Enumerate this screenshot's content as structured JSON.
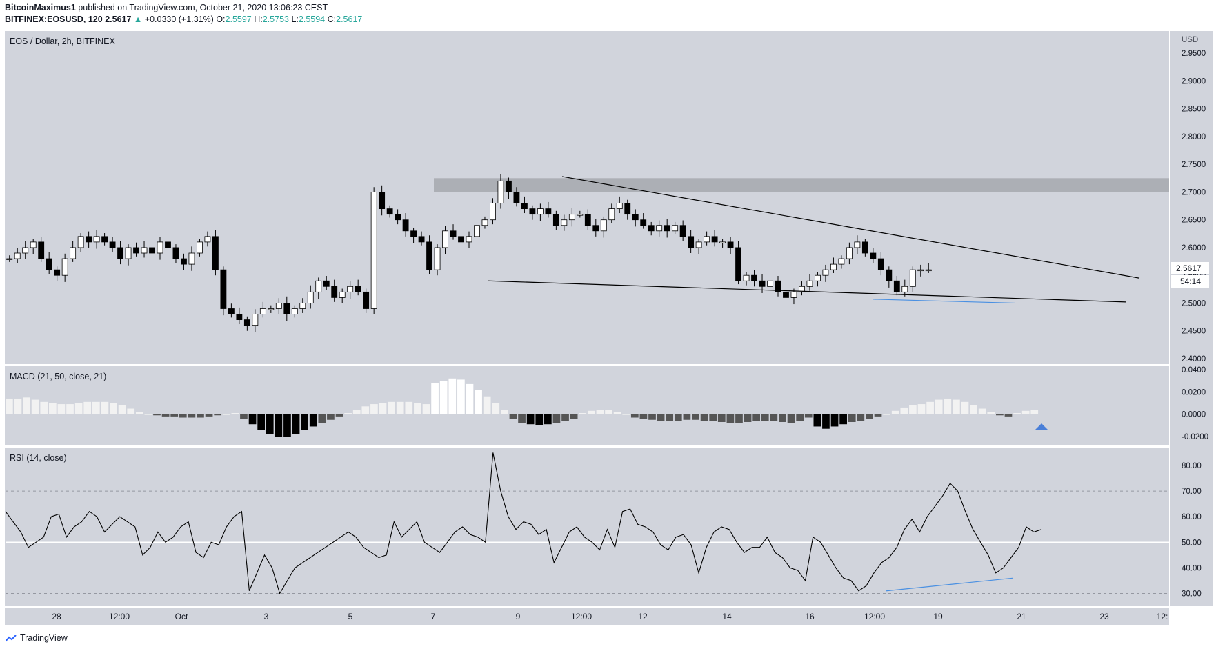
{
  "header": {
    "author": "BitcoinMaximus1",
    "published": "published on TradingView.com, October 21, 2020 13:06:23 CEST",
    "symbol": "BITFINEX:EOSUSD, 120",
    "last": "2.5617",
    "change": "+0.0330 (+1.31%)",
    "o_label": "O:",
    "o": "2.5597",
    "h_label": "H:",
    "h": "2.5753",
    "l_label": "L:",
    "l": "2.5594",
    "c_label": "C:",
    "c": "2.5617"
  },
  "price_panel": {
    "title": "EOS / Dollar, 2h, BITFINEX",
    "currency": "USD",
    "last_price": "2.5617",
    "countdown": "54:14"
  },
  "macd_panel": {
    "title": "MACD (21, 50, close, 21)"
  },
  "rsi_panel": {
    "title": "RSI (14, close)"
  },
  "footer": {
    "brand": "TradingView"
  },
  "colors": {
    "background": "#d1d4dc",
    "frame": "#ffffff",
    "candle": "#000000",
    "up_text": "#26a69a",
    "divergence_line": "#4a90e2",
    "resistance_zone": "#a6a8ae"
  },
  "chart_data": [
    {
      "type": "candlestick",
      "title": "EOS / Dollar, 2h, BITFINEX",
      "ylabel": "USD",
      "y_ticks": [
        "2.4000",
        "2.4500",
        "2.5000",
        "2.5500",
        "2.6000",
        "2.6500",
        "2.7000",
        "2.7500",
        "2.8000",
        "2.8500",
        "2.9000",
        "2.9500"
      ],
      "ylim": [
        2.39,
        2.99
      ],
      "x_ticks": [
        "28",
        "12:00",
        "Oct",
        "3",
        "5",
        "7",
        "9",
        "12:00",
        "12",
        "14",
        "16",
        "12:00",
        "19",
        "21",
        "23",
        "12:"
      ],
      "closes_approx": [
        2.58,
        2.59,
        2.6,
        2.61,
        2.58,
        2.56,
        2.55,
        2.58,
        2.6,
        2.62,
        2.61,
        2.62,
        2.61,
        2.6,
        2.58,
        2.6,
        2.59,
        2.6,
        2.59,
        2.61,
        2.6,
        2.58,
        2.57,
        2.59,
        2.61,
        2.62,
        2.56,
        2.49,
        2.48,
        2.47,
        2.46,
        2.48,
        2.49,
        2.49,
        2.5,
        2.48,
        2.49,
        2.5,
        2.52,
        2.54,
        2.53,
        2.51,
        2.52,
        2.53,
        2.52,
        2.49,
        2.7,
        2.67,
        2.66,
        2.65,
        2.63,
        2.62,
        2.61,
        2.56,
        2.6,
        2.63,
        2.62,
        2.61,
        2.62,
        2.64,
        2.65,
        2.68,
        2.72,
        2.7,
        2.68,
        2.67,
        2.66,
        2.67,
        2.66,
        2.64,
        2.65,
        2.66,
        2.66,
        2.64,
        2.63,
        2.65,
        2.67,
        2.68,
        2.66,
        2.65,
        2.64,
        2.63,
        2.64,
        2.63,
        2.64,
        2.62,
        2.6,
        2.61,
        2.62,
        2.61,
        2.61,
        2.6,
        2.54,
        2.55,
        2.54,
        2.53,
        2.54,
        2.52,
        2.51,
        2.52,
        2.53,
        2.54,
        2.55,
        2.56,
        2.57,
        2.58,
        2.6,
        2.61,
        2.59,
        2.58,
        2.56,
        2.54,
        2.52,
        2.53,
        2.56,
        2.56,
        2.56
      ],
      "annotations": [
        {
          "label": "resistance zone",
          "range": [
            2.7,
            2.725
          ]
        },
        {
          "label": "descending resistance line",
          "from": [
            2.728
          ],
          "to": [
            2.545
          ]
        },
        {
          "label": "support line",
          "from": [
            2.54
          ],
          "to": [
            2.502
          ]
        },
        {
          "label": "blue line (lows)",
          "values": [
            2.507,
            2.5
          ]
        }
      ],
      "last_price": "2.5617",
      "countdown": "54:14"
    },
    {
      "type": "histogram",
      "title": "MACD (21, 50, close, 21)",
      "y_ticks": [
        "0.0400",
        "0.0200",
        "0.0000",
        "-0.0200"
      ],
      "ylim": [
        -0.028,
        0.043
      ],
      "values_approx": [
        0.014,
        0.014,
        0.015,
        0.013,
        0.011,
        0.01,
        0.009,
        0.009,
        0.01,
        0.011,
        0.011,
        0.011,
        0.01,
        0.008,
        0.005,
        0.002,
        0,
        -0.001,
        -0.002,
        -0.002,
        -0.003,
        -0.003,
        -0.003,
        -0.002,
        -0.001,
        0,
        0.001,
        -0.004,
        -0.009,
        -0.014,
        -0.018,
        -0.02,
        -0.02,
        -0.018,
        -0.014,
        -0.011,
        -0.008,
        -0.005,
        -0.002,
        0.001,
        0.004,
        0.007,
        0.009,
        0.01,
        0.011,
        0.011,
        0.011,
        0.01,
        0.009,
        0.028,
        0.03,
        0.032,
        0.031,
        0.027,
        0.022,
        0.016,
        0.01,
        0.004,
        -0.004,
        -0.008,
        -0.009,
        -0.01,
        -0.009,
        -0.008,
        -0.006,
        -0.004,
        0.001,
        0.003,
        0.004,
        0.004,
        0.002,
        0,
        -0.003,
        -0.004,
        -0.005,
        -0.006,
        -0.006,
        -0.006,
        -0.005,
        -0.005,
        -0.006,
        -0.006,
        -0.007,
        -0.008,
        -0.008,
        -0.007,
        -0.006,
        -0.006,
        -0.006,
        -0.007,
        -0.008,
        -0.006,
        -0.003,
        -0.011,
        -0.013,
        -0.011,
        -0.009,
        -0.007,
        -0.006,
        -0.004,
        -0.002,
        0,
        0.003,
        0.006,
        0.008,
        0.009,
        0.011,
        0.013,
        0.014,
        0.013,
        0.011,
        0.008,
        0.005,
        0.002,
        -0.001,
        -0.002,
        0.001,
        0.003,
        0.004
      ],
      "marker": "up-arrow"
    },
    {
      "type": "line",
      "title": "RSI (14, close)",
      "y_ticks": [
        "80.00",
        "70.00",
        "60.00",
        "50.00",
        "40.00",
        "30.00"
      ],
      "ylim": [
        25,
        87
      ],
      "bands": [
        30,
        50,
        70
      ],
      "values_approx": [
        62,
        58,
        54,
        48,
        50,
        52,
        60,
        61,
        52,
        56,
        58,
        62,
        60,
        54,
        57,
        60,
        58,
        56,
        45,
        48,
        54,
        50,
        52,
        56,
        58,
        46,
        44,
        50,
        49,
        56,
        60,
        62,
        31,
        38,
        45,
        40,
        30,
        35,
        40,
        42,
        44,
        46,
        48,
        50,
        52,
        54,
        52,
        48,
        46,
        44,
        45,
        58,
        52,
        55,
        58,
        50,
        48,
        46,
        50,
        54,
        56,
        53,
        52,
        50,
        85,
        70,
        60,
        55,
        58,
        57,
        53,
        55,
        42,
        48,
        54,
        56,
        52,
        50,
        47,
        55,
        48,
        62,
        63,
        57,
        56,
        54,
        49,
        47,
        52,
        53,
        49,
        38,
        48,
        54,
        56,
        55,
        50,
        46,
        48,
        48,
        52,
        46,
        44,
        40,
        39,
        35,
        52,
        50,
        45,
        40,
        36,
        35,
        31,
        33,
        38,
        42,
        44,
        48,
        55,
        59,
        54,
        60,
        64,
        68,
        73,
        70,
        62,
        55,
        50,
        45,
        38,
        40,
        44,
        48,
        56,
        54,
        55
      ],
      "divergence_line": [
        31,
        36
      ]
    }
  ]
}
